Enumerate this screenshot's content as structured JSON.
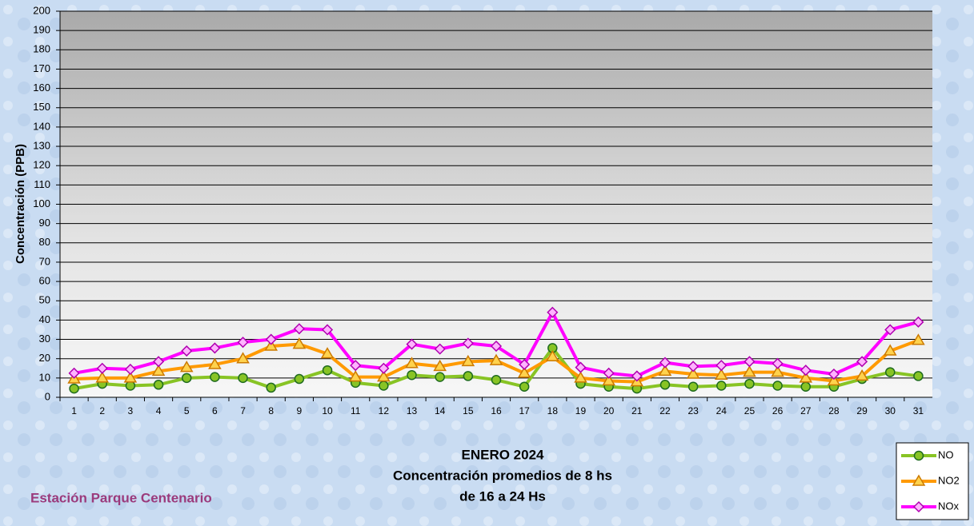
{
  "chart_data": {
    "type": "line",
    "title": "ENERO 2024",
    "subtitle": [
      "Concentración promedios de 8 hs",
      "de 16 a 24 Hs"
    ],
    "annotation": "Estación Parque Centenario",
    "y_label": "Concentración  (PPB)",
    "categories": [
      "1",
      "2",
      "3",
      "4",
      "5",
      "6",
      "7",
      "8",
      "9",
      "10",
      "11",
      "12",
      "13",
      "14",
      "15",
      "16",
      "17",
      "18",
      "19",
      "20",
      "21",
      "22",
      "23",
      "24",
      "25",
      "26",
      "27",
      "28",
      "29",
      "30",
      "31"
    ],
    "series": [
      {
        "name": "NO",
        "color": "#88c425",
        "marker": "circle",
        "values": [
          4.5,
          7,
          6,
          6.5,
          10,
          10.5,
          10,
          5,
          9.5,
          14,
          7.5,
          6,
          11.5,
          10.5,
          11,
          9,
          5.5,
          25.5,
          7,
          5.5,
          4.5,
          6.5,
          5.5,
          6,
          7,
          6,
          5.5,
          5.5,
          9.5,
          13,
          11
        ]
      },
      {
        "name": "NO2",
        "color": "#ff9a00",
        "marker": "triangle",
        "values": [
          9.5,
          10,
          10,
          13.5,
          15.5,
          17,
          20,
          26.5,
          27.5,
          22.5,
          10.5,
          10.5,
          17.5,
          16,
          18.5,
          19,
          12.5,
          21,
          10,
          8.5,
          8,
          13.5,
          12,
          11.5,
          13,
          13,
          10,
          8.5,
          11,
          24,
          29.5
        ]
      },
      {
        "name": "NOx",
        "color": "#ff00ff",
        "marker": "diamond",
        "values": [
          12.5,
          15,
          14.5,
          18.5,
          24,
          25.5,
          28.5,
          30,
          35.5,
          35,
          16.5,
          15,
          27.5,
          25,
          28,
          26.5,
          17,
          44,
          15.5,
          12.5,
          11,
          18,
          16,
          16.5,
          18.5,
          17.5,
          14,
          12,
          18.5,
          35,
          39
        ]
      }
    ],
    "ylim": [
      0,
      200
    ],
    "yticks": [
      0,
      10,
      20,
      30,
      40,
      50,
      60,
      70,
      80,
      90,
      100,
      110,
      120,
      130,
      140,
      150,
      160,
      170,
      180,
      190,
      200
    ],
    "grid": true,
    "legend": "bottom-right"
  }
}
